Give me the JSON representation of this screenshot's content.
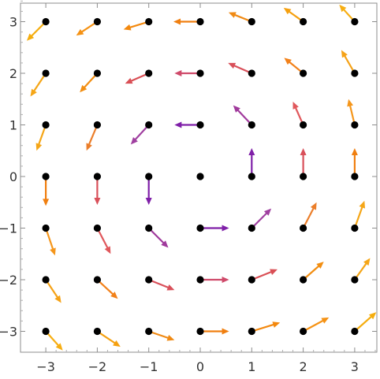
{
  "chart_data": {
    "type": "vector_field",
    "title": "",
    "xlabel": "",
    "ylabel": "",
    "xlim": [
      -3.4,
      3.4
    ],
    "ylim": [
      -3.4,
      3.4
    ],
    "grid": false,
    "x_ticks": [
      {
        "value": -3,
        "label": "−3"
      },
      {
        "value": -2,
        "label": "−2"
      },
      {
        "value": -1,
        "label": "−1"
      },
      {
        "value": 0,
        "label": "0"
      },
      {
        "value": 1,
        "label": "1"
      },
      {
        "value": 2,
        "label": "2"
      },
      {
        "value": 3,
        "label": "3"
      }
    ],
    "y_ticks": [
      {
        "value": 3,
        "label": "3"
      },
      {
        "value": 2,
        "label": "2"
      },
      {
        "value": 1,
        "label": "1"
      },
      {
        "value": 0,
        "label": "0"
      },
      {
        "value": -1,
        "label": "−1"
      },
      {
        "value": -2,
        "label": "−2"
      },
      {
        "value": -3,
        "label": "−3"
      }
    ],
    "point_color": "#000000",
    "vectors": [
      {
        "x": -3,
        "y": 3,
        "dx": -0.37,
        "dy": -0.37,
        "color": "#f5ad0e"
      },
      {
        "x": -2,
        "y": 3,
        "dx": -0.41,
        "dy": -0.27,
        "color": "#f59214"
      },
      {
        "x": -1,
        "y": 3,
        "dx": -0.49,
        "dy": -0.15,
        "color": "#f3880d"
      },
      {
        "x": 0,
        "y": 3,
        "dx": -0.52,
        "dy": 0.0,
        "color": "#f07f10"
      },
      {
        "x": 1,
        "y": 3,
        "dx": -0.45,
        "dy": 0.18,
        "color": "#f08a14"
      },
      {
        "x": 2,
        "y": 3,
        "dx": -0.38,
        "dy": 0.27,
        "color": "#f5a00f"
      },
      {
        "x": 3,
        "y": 3,
        "dx": -0.3,
        "dy": 0.33,
        "color": "#f7ae12"
      },
      {
        "x": -3,
        "y": 2,
        "dx": -0.3,
        "dy": -0.45,
        "color": "#f5a617"
      },
      {
        "x": -2,
        "y": 2,
        "dx": -0.34,
        "dy": -0.37,
        "color": "#f28e12"
      },
      {
        "x": -1,
        "y": 2,
        "dx": -0.46,
        "dy": -0.2,
        "color": "#d94f55"
      },
      {
        "x": 0,
        "y": 2,
        "dx": -0.5,
        "dy": 0.0,
        "color": "#cf4a6a"
      },
      {
        "x": 1,
        "y": 2,
        "dx": -0.46,
        "dy": 0.2,
        "color": "#d9505a"
      },
      {
        "x": 2,
        "y": 2,
        "dx": -0.37,
        "dy": 0.3,
        "color": "#f2811a"
      },
      {
        "x": 3,
        "y": 2,
        "dx": -0.26,
        "dy": 0.45,
        "color": "#f5a217"
      },
      {
        "x": -3,
        "y": 1,
        "dx": -0.18,
        "dy": -0.5,
        "color": "#f5a617"
      },
      {
        "x": -2,
        "y": 1,
        "dx": -0.21,
        "dy": -0.5,
        "color": "#eb7e2a"
      },
      {
        "x": -1,
        "y": 1,
        "dx": -0.35,
        "dy": -0.38,
        "color": "#a040a0"
      },
      {
        "x": 0,
        "y": 1,
        "dx": -0.5,
        "dy": 0.0,
        "color": "#7f1fa8"
      },
      {
        "x": 1,
        "y": 1,
        "dx": -0.36,
        "dy": 0.38,
        "color": "#a03a9c"
      },
      {
        "x": 2,
        "y": 1,
        "dx": -0.2,
        "dy": 0.45,
        "color": "#e0585c"
      },
      {
        "x": 3,
        "y": 1,
        "dx": -0.12,
        "dy": 0.5,
        "color": "#f5961b"
      },
      {
        "x": -3,
        "y": 0,
        "dx": 0.0,
        "dy": -0.57,
        "color": "#f07f10"
      },
      {
        "x": -2,
        "y": 0,
        "dx": 0.0,
        "dy": -0.55,
        "color": "#d9505a"
      },
      {
        "x": -1,
        "y": 0,
        "dx": 0.0,
        "dy": -0.55,
        "color": "#7f1fa8"
      },
      {
        "x": 0,
        "y": 0,
        "dx": 0.0,
        "dy": 0.0,
        "color": "#000000"
      },
      {
        "x": 1,
        "y": 0,
        "dx": 0.0,
        "dy": 0.55,
        "color": "#7f1fa8"
      },
      {
        "x": 2,
        "y": 0,
        "dx": 0.0,
        "dy": 0.55,
        "color": "#d9505a"
      },
      {
        "x": 3,
        "y": 0,
        "dx": 0.0,
        "dy": 0.55,
        "color": "#f07f10"
      },
      {
        "x": -3,
        "y": -1,
        "dx": 0.18,
        "dy": -0.53,
        "color": "#f5961b"
      },
      {
        "x": -2,
        "y": -1,
        "dx": 0.26,
        "dy": -0.5,
        "color": "#e0585c"
      },
      {
        "x": -1,
        "y": -1,
        "dx": 0.38,
        "dy": -0.38,
        "color": "#a03a9c"
      },
      {
        "x": 0,
        "y": -1,
        "dx": 0.56,
        "dy": 0.0,
        "color": "#7f1fa8"
      },
      {
        "x": 1,
        "y": -1,
        "dx": 0.38,
        "dy": 0.38,
        "color": "#a040a0"
      },
      {
        "x": 2,
        "y": -1,
        "dx": 0.26,
        "dy": 0.5,
        "color": "#eb7e2a"
      },
      {
        "x": 3,
        "y": -1,
        "dx": 0.19,
        "dy": 0.53,
        "color": "#f5a617"
      },
      {
        "x": -3,
        "y": -2,
        "dx": 0.3,
        "dy": -0.45,
        "color": "#f5a217"
      },
      {
        "x": -2,
        "y": -2,
        "dx": 0.4,
        "dy": -0.37,
        "color": "#f2811a"
      },
      {
        "x": -1,
        "y": -2,
        "dx": 0.5,
        "dy": -0.2,
        "color": "#d9505a"
      },
      {
        "x": 0,
        "y": -2,
        "dx": 0.56,
        "dy": 0.0,
        "color": "#cf4a6a"
      },
      {
        "x": 1,
        "y": -2,
        "dx": 0.5,
        "dy": 0.2,
        "color": "#d94f55"
      },
      {
        "x": 2,
        "y": -2,
        "dx": 0.4,
        "dy": 0.35,
        "color": "#f28e12"
      },
      {
        "x": 3,
        "y": -2,
        "dx": 0.3,
        "dy": 0.42,
        "color": "#f5a617"
      },
      {
        "x": -3,
        "y": -3,
        "dx": 0.33,
        "dy": -0.37,
        "color": "#f7ae12"
      },
      {
        "x": -2,
        "y": -3,
        "dx": 0.45,
        "dy": -0.3,
        "color": "#f5a00f"
      },
      {
        "x": -1,
        "y": -3,
        "dx": 0.5,
        "dy": -0.17,
        "color": "#f08a14"
      },
      {
        "x": 0,
        "y": -3,
        "dx": 0.56,
        "dy": 0.0,
        "color": "#f07f10"
      },
      {
        "x": 1,
        "y": -3,
        "dx": 0.55,
        "dy": 0.17,
        "color": "#f3880d"
      },
      {
        "x": 2,
        "y": -3,
        "dx": 0.5,
        "dy": 0.27,
        "color": "#f59214"
      },
      {
        "x": 3,
        "y": -3,
        "dx": 0.42,
        "dy": 0.37,
        "color": "#f5ad0e"
      }
    ]
  }
}
